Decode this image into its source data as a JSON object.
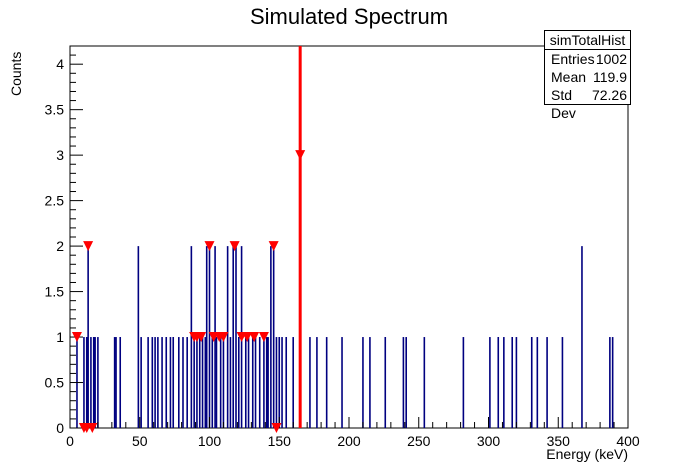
{
  "chart_data": {
    "type": "histogram",
    "title": "Simulated Spectrum",
    "xlabel": "Energy (keV)",
    "ylabel": "Counts",
    "xlim": [
      0,
      400
    ],
    "ylim": [
      0,
      4.2
    ],
    "xticks": [
      "0",
      "50",
      "100",
      "150",
      "200",
      "250",
      "300",
      "350",
      "400"
    ],
    "yticks": [
      "0",
      "0.5",
      "1",
      "1.5",
      "2",
      "2.5",
      "3",
      "3.5",
      "4"
    ],
    "line_color": "#000080",
    "bins": [
      {
        "x": 5,
        "y": 1
      },
      {
        "x": 10,
        "y": 1
      },
      {
        "x": 12,
        "y": 1
      },
      {
        "x": 13,
        "y": 2
      },
      {
        "x": 15,
        "y": 1
      },
      {
        "x": 17,
        "y": 1
      },
      {
        "x": 18,
        "y": 1
      },
      {
        "x": 20,
        "y": 1
      },
      {
        "x": 32,
        "y": 1
      },
      {
        "x": 33,
        "y": 1
      },
      {
        "x": 36,
        "y": 1
      },
      {
        "x": 49,
        "y": 2
      },
      {
        "x": 51,
        "y": 1
      },
      {
        "x": 56,
        "y": 1
      },
      {
        "x": 59,
        "y": 1
      },
      {
        "x": 61,
        "y": 1
      },
      {
        "x": 63,
        "y": 1
      },
      {
        "x": 66,
        "y": 1
      },
      {
        "x": 69,
        "y": 1
      },
      {
        "x": 72,
        "y": 1
      },
      {
        "x": 74,
        "y": 1
      },
      {
        "x": 78,
        "y": 1
      },
      {
        "x": 81,
        "y": 1
      },
      {
        "x": 84,
        "y": 1
      },
      {
        "x": 87,
        "y": 2
      },
      {
        "x": 89,
        "y": 1
      },
      {
        "x": 91,
        "y": 1
      },
      {
        "x": 93,
        "y": 1
      },
      {
        "x": 95,
        "y": 1
      },
      {
        "x": 97,
        "y": 1
      },
      {
        "x": 98,
        "y": 2
      },
      {
        "x": 100,
        "y": 2
      },
      {
        "x": 102,
        "y": 1
      },
      {
        "x": 104,
        "y": 2
      },
      {
        "x": 105,
        "y": 1
      },
      {
        "x": 108,
        "y": 1
      },
      {
        "x": 110,
        "y": 1
      },
      {
        "x": 113,
        "y": 2
      },
      {
        "x": 115,
        "y": 1
      },
      {
        "x": 117,
        "y": 2
      },
      {
        "x": 119,
        "y": 2
      },
      {
        "x": 121,
        "y": 1
      },
      {
        "x": 123,
        "y": 2
      },
      {
        "x": 126,
        "y": 1
      },
      {
        "x": 128,
        "y": 1
      },
      {
        "x": 131,
        "y": 1
      },
      {
        "x": 133,
        "y": 1
      },
      {
        "x": 136,
        "y": 1
      },
      {
        "x": 139,
        "y": 1
      },
      {
        "x": 141,
        "y": 1
      },
      {
        "x": 142,
        "y": 1
      },
      {
        "x": 144,
        "y": 2
      },
      {
        "x": 146,
        "y": 2
      },
      {
        "x": 148,
        "y": 1
      },
      {
        "x": 150,
        "y": 1
      },
      {
        "x": 152,
        "y": 1
      },
      {
        "x": 155,
        "y": 1
      },
      {
        "x": 160,
        "y": 1
      },
      {
        "x": 165,
        "y": 3
      },
      {
        "x": 172,
        "y": 1
      },
      {
        "x": 177,
        "y": 1
      },
      {
        "x": 184,
        "y": 1
      },
      {
        "x": 195,
        "y": 1
      },
      {
        "x": 210,
        "y": 1
      },
      {
        "x": 215,
        "y": 1
      },
      {
        "x": 226,
        "y": 1
      },
      {
        "x": 239,
        "y": 1
      },
      {
        "x": 241,
        "y": 1
      },
      {
        "x": 254,
        "y": 1
      },
      {
        "x": 282,
        "y": 1
      },
      {
        "x": 301,
        "y": 1
      },
      {
        "x": 307,
        "y": 1
      },
      {
        "x": 311,
        "y": 1
      },
      {
        "x": 317,
        "y": 1
      },
      {
        "x": 320,
        "y": 1
      },
      {
        "x": 331,
        "y": 1
      },
      {
        "x": 335,
        "y": 1
      },
      {
        "x": 342,
        "y": 1
      },
      {
        "x": 353,
        "y": 1
      },
      {
        "x": 367,
        "y": 2
      },
      {
        "x": 387,
        "y": 1
      },
      {
        "x": 389,
        "y": 1
      }
    ],
    "peak_line": {
      "x": 165,
      "color": "#ff0000"
    },
    "markers": {
      "color": "#ff0000",
      "points": [
        {
          "x": 5,
          "y": 1
        },
        {
          "x": 10,
          "y": 0
        },
        {
          "x": 12,
          "y": 0
        },
        {
          "x": 13,
          "y": 2
        },
        {
          "x": 16,
          "y": 0
        },
        {
          "x": 89,
          "y": 1
        },
        {
          "x": 91,
          "y": 1
        },
        {
          "x": 94,
          "y": 1
        },
        {
          "x": 100,
          "y": 2
        },
        {
          "x": 103,
          "y": 1
        },
        {
          "x": 107,
          "y": 1
        },
        {
          "x": 110,
          "y": 1
        },
        {
          "x": 118,
          "y": 2
        },
        {
          "x": 123,
          "y": 1
        },
        {
          "x": 127,
          "y": 1
        },
        {
          "x": 132,
          "y": 1
        },
        {
          "x": 139,
          "y": 1
        },
        {
          "x": 146,
          "y": 2
        },
        {
          "x": 148,
          "y": 0
        },
        {
          "x": 165,
          "y": 3
        }
      ]
    },
    "stats": {
      "name": "simTotalHist",
      "rows": [
        {
          "label": "Entries",
          "value": "1002"
        },
        {
          "label": "Mean",
          "value": "119.9"
        },
        {
          "label": "Std Dev",
          "value": "72.26"
        }
      ]
    }
  }
}
